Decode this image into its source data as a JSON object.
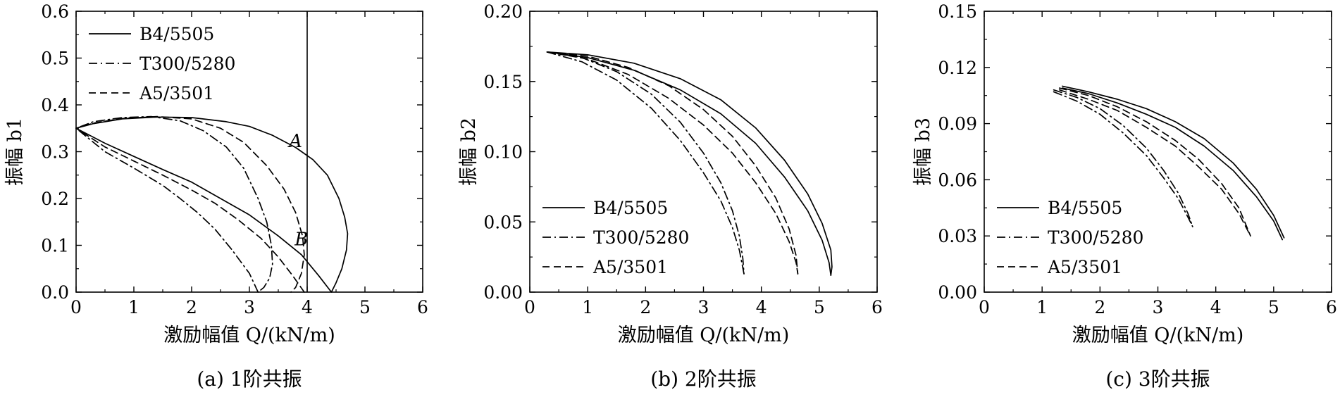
{
  "chart_data": [
    {
      "type": "line",
      "caption": "(a) 1阶共振",
      "xlabel": "激励幅值 Q/(kN/m)",
      "ylabel": "振幅 b1",
      "xlim": [
        0,
        6
      ],
      "ylim": [
        0,
        0.6
      ],
      "xticks": [
        "0",
        "1",
        "2",
        "3",
        "4",
        "5",
        "6"
      ],
      "yticks": [
        "0.0",
        "0.1",
        "0.2",
        "0.3",
        "0.4",
        "0.5",
        "0.6"
      ],
      "legend_position": "top-left",
      "vline": 4.0,
      "annotations": [
        {
          "text": "A",
          "x": 3.8,
          "y": 0.31
        },
        {
          "text": "B",
          "x": 3.9,
          "y": 0.1
        }
      ],
      "series": [
        {
          "name": "B4/5505",
          "dash": "solid",
          "x": [
            4.42,
            4.2,
            3.9,
            3.5,
            3.0,
            2.5,
            2.0,
            1.5,
            1.0,
            0.5,
            0.0,
            0.3,
            0.8,
            1.4,
            2.0,
            2.6,
            3.0,
            3.4,
            3.8,
            4.1,
            4.35,
            4.55,
            4.65,
            4.7,
            4.68,
            4.6,
            4.5,
            4.42
          ],
          "y": [
            0.0,
            0.035,
            0.08,
            0.12,
            0.165,
            0.2,
            0.235,
            0.262,
            0.29,
            0.318,
            0.35,
            0.36,
            0.37,
            0.374,
            0.373,
            0.364,
            0.354,
            0.335,
            0.309,
            0.283,
            0.25,
            0.2,
            0.16,
            0.125,
            0.09,
            0.05,
            0.02,
            0.0
          ]
        },
        {
          "name": "T300/5280",
          "dash": "dashdot",
          "x": [
            3.15,
            3.0,
            2.7,
            2.4,
            2.1,
            1.8,
            1.5,
            1.0,
            0.5,
            0.0,
            0.3,
            0.8,
            1.3,
            1.8,
            2.2,
            2.6,
            2.9,
            3.15,
            3.3,
            3.38,
            3.4,
            3.35,
            3.25,
            3.15
          ],
          "y": [
            0.0,
            0.04,
            0.09,
            0.135,
            0.17,
            0.2,
            0.228,
            0.265,
            0.3,
            0.35,
            0.364,
            0.373,
            0.375,
            0.366,
            0.345,
            0.31,
            0.265,
            0.2,
            0.15,
            0.1,
            0.06,
            0.03,
            0.01,
            0.0
          ]
        },
        {
          "name": "A5/3501",
          "dash": "dashed",
          "x": [
            3.95,
            3.75,
            3.5,
            3.2,
            2.8,
            2.4,
            2.0,
            1.5,
            1.0,
            0.5,
            0.0,
            0.3,
            0.8,
            1.4,
            2.0,
            2.5,
            2.9,
            3.3,
            3.6,
            3.8,
            3.92,
            3.95,
            3.9,
            3.8,
            3.72
          ],
          "y": [
            0.0,
            0.035,
            0.075,
            0.115,
            0.155,
            0.19,
            0.218,
            0.25,
            0.28,
            0.31,
            0.35,
            0.361,
            0.371,
            0.375,
            0.37,
            0.35,
            0.32,
            0.27,
            0.22,
            0.17,
            0.12,
            0.08,
            0.04,
            0.01,
            0.0
          ]
        }
      ]
    },
    {
      "type": "line",
      "caption": "(b) 2阶共振",
      "xlabel": "激励幅值 Q/(kN/m)",
      "ylabel": "振幅 b2",
      "xlim": [
        0,
        6
      ],
      "ylim": [
        0,
        0.2
      ],
      "xticks": [
        "0",
        "1",
        "2",
        "3",
        "4",
        "5",
        "6"
      ],
      "yticks": [
        "0.00",
        "0.05",
        "0.10",
        "0.15",
        "0.20"
      ],
      "legend_position": "bottom-left",
      "series": [
        {
          "name": "B4/5505",
          "dash": "solid",
          "branches": [
            {
              "x": [
                0.3,
                1.0,
                1.8,
                2.6,
                3.3,
                3.9,
                4.4,
                4.8,
                5.05,
                5.2,
                5.22,
                5.2
              ],
              "y": [
                0.171,
                0.169,
                0.163,
                0.152,
                0.137,
                0.117,
                0.094,
                0.07,
                0.049,
                0.03,
                0.018,
                0.012
              ]
            },
            {
              "x": [
                0.3,
                1.0,
                1.8,
                2.6,
                3.3,
                3.9,
                4.4,
                4.8,
                5.05,
                5.17,
                5.2
              ],
              "y": [
                0.171,
                0.167,
                0.158,
                0.144,
                0.127,
                0.106,
                0.082,
                0.058,
                0.037,
                0.021,
                0.012
              ]
            }
          ]
        },
        {
          "name": "T300/5280",
          "dash": "dashdot",
          "branches": [
            {
              "x": [
                0.3,
                0.9,
                1.5,
                2.1,
                2.6,
                3.0,
                3.3,
                3.5,
                3.62,
                3.68,
                3.7
              ],
              "y": [
                0.171,
                0.167,
                0.157,
                0.141,
                0.121,
                0.099,
                0.078,
                0.058,
                0.04,
                0.024,
                0.013
              ]
            },
            {
              "x": [
                0.3,
                0.9,
                1.5,
                2.1,
                2.6,
                3.0,
                3.3,
                3.5,
                3.62,
                3.7
              ],
              "y": [
                0.171,
                0.164,
                0.151,
                0.131,
                0.108,
                0.085,
                0.065,
                0.046,
                0.03,
                0.013
              ]
            }
          ]
        },
        {
          "name": "A5/3501",
          "dash": "dashed",
          "branches": [
            {
              "x": [
                0.3,
                1.0,
                1.7,
                2.4,
                3.0,
                3.5,
                3.9,
                4.25,
                4.48,
                4.6,
                4.63
              ],
              "y": [
                0.171,
                0.168,
                0.16,
                0.147,
                0.13,
                0.111,
                0.09,
                0.067,
                0.045,
                0.026,
                0.013
              ]
            },
            {
              "x": [
                0.3,
                1.0,
                1.7,
                2.4,
                3.0,
                3.5,
                3.9,
                4.25,
                4.48,
                4.6,
                4.63
              ],
              "y": [
                0.171,
                0.166,
                0.155,
                0.138,
                0.119,
                0.099,
                0.078,
                0.056,
                0.036,
                0.021,
                0.013
              ]
            }
          ]
        }
      ]
    },
    {
      "type": "line",
      "caption": "(c) 3阶共振",
      "xlabel": "激励幅值 Q/(kN/m)",
      "ylabel": "振幅 b3",
      "xlim": [
        0,
        6
      ],
      "ylim": [
        0,
        0.15
      ],
      "xticks": [
        "0",
        "1",
        "2",
        "3",
        "4",
        "5",
        "6"
      ],
      "yticks": [
        "0.00",
        "0.03",
        "0.06",
        "0.09",
        "0.12",
        "0.15"
      ],
      "legend_position": "bottom-left",
      "series": [
        {
          "name": "B4/5505",
          "dash": "solid",
          "branches": [
            {
              "x": [
                1.35,
                1.8,
                2.3,
                2.8,
                3.3,
                3.8,
                4.3,
                4.7,
                5.0,
                5.18
              ],
              "y": [
                0.11,
                0.107,
                0.103,
                0.098,
                0.091,
                0.082,
                0.069,
                0.055,
                0.041,
                0.029
              ]
            },
            {
              "x": [
                1.35,
                1.8,
                2.3,
                2.8,
                3.3,
                3.8,
                4.3,
                4.7,
                5.0,
                5.15
              ],
              "y": [
                0.109,
                0.106,
                0.101,
                0.095,
                0.088,
                0.078,
                0.065,
                0.051,
                0.038,
                0.028
              ]
            }
          ]
        },
        {
          "name": "T300/5280",
          "dash": "dashdot",
          "branches": [
            {
              "x": [
                1.2,
                1.6,
                2.0,
                2.4,
                2.8,
                3.1,
                3.35,
                3.52,
                3.6
              ],
              "y": [
                0.108,
                0.104,
                0.098,
                0.089,
                0.077,
                0.065,
                0.053,
                0.042,
                0.035
              ]
            },
            {
              "x": [
                1.2,
                1.6,
                2.0,
                2.4,
                2.8,
                3.1,
                3.35,
                3.52,
                3.6
              ],
              "y": [
                0.107,
                0.102,
                0.095,
                0.085,
                0.073,
                0.061,
                0.05,
                0.04,
                0.035
              ]
            }
          ]
        },
        {
          "name": "A5/3501",
          "dash": "dashed",
          "branches": [
            {
              "x": [
                1.3,
                1.8,
                2.3,
                2.8,
                3.3,
                3.7,
                4.1,
                4.4,
                4.6
              ],
              "y": [
                0.109,
                0.105,
                0.099,
                0.091,
                0.081,
                0.071,
                0.058,
                0.045,
                0.03
              ]
            },
            {
              "x": [
                1.3,
                1.8,
                2.3,
                2.8,
                3.3,
                3.7,
                4.1,
                4.4,
                4.6
              ],
              "y": [
                0.108,
                0.103,
                0.097,
                0.088,
                0.078,
                0.067,
                0.055,
                0.042,
                0.03
              ]
            }
          ]
        }
      ]
    }
  ]
}
